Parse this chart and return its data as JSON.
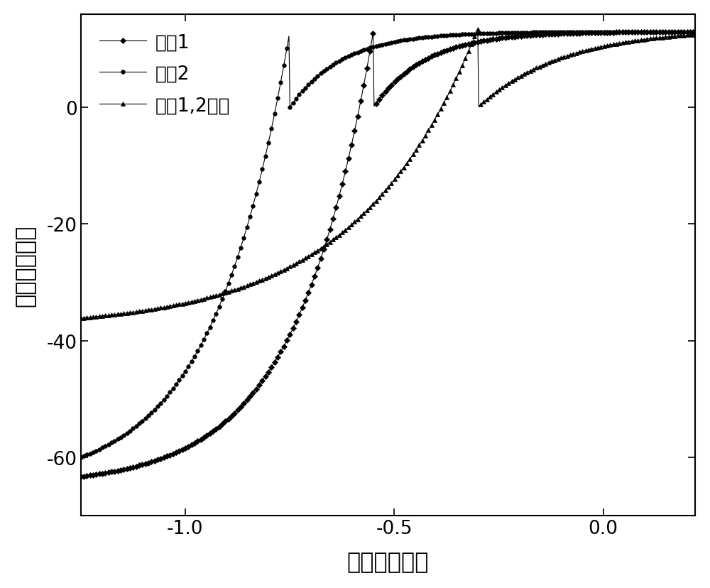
{
  "xlabel": "电压（伏特）",
  "ylabel": "电流（纳安）",
  "xlim": [
    -1.25,
    0.22
  ],
  "ylim": [
    -70,
    16
  ],
  "xticks": [
    -1.0,
    -0.5,
    0.0
  ],
  "yticks": [
    -60,
    -40,
    -20,
    0
  ],
  "legend_labels": [
    "沟道1",
    "沟道2",
    "沟道1,2串联"
  ],
  "markers": [
    "D",
    "o",
    "^"
  ],
  "colors": [
    "black",
    "black",
    "black"
  ],
  "linewidth": 0.8,
  "markersize": [
    4,
    4,
    4
  ],
  "marker_every": 3,
  "background_color": "#ffffff",
  "legend_font_size": 19,
  "tick_font_size": 19,
  "label_font_size": 23,
  "curve1": {
    "Voc": -0.55,
    "Isc": -65.0,
    "Isat_top": 13.0,
    "n1": 5.5,
    "n2": 8.0
  },
  "curve2": {
    "Voc": -0.75,
    "Isc": -65.0,
    "Isat_top": 13.0,
    "n1": 5.5,
    "n2": 8.0
  },
  "curve3": {
    "Voc": -0.3,
    "Isc": -38.0,
    "Isat_top": 13.5,
    "n1": 3.5,
    "n2": 5.0
  }
}
